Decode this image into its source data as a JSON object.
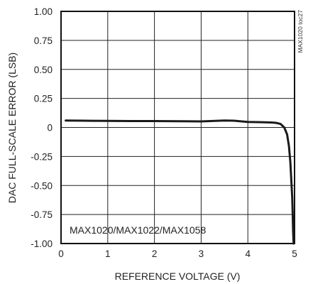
{
  "chart_data": {
    "type": "line",
    "title": "",
    "xlabel": "REFERENCE VOLTAGE (V)",
    "ylabel": "DAC FULL-SCALE ERROR (LSB)",
    "xlim": [
      0,
      5
    ],
    "ylim": [
      -1.0,
      1.0
    ],
    "x_ticks": [
      "0",
      "1",
      "2",
      "3",
      "4",
      "5"
    ],
    "y_ticks": [
      "1.00",
      "0.75",
      "0.50",
      "0.25",
      "0",
      "-0.25",
      "-0.50",
      "-0.75",
      "-1.00"
    ],
    "grid": true,
    "annotation": "MAX1020/MAX1022/MAX1058",
    "side_id": "MAX1020 toc27",
    "series": [
      {
        "color": "#1a1a1a",
        "x": [
          0.1,
          0.5,
          1.0,
          1.5,
          2.0,
          2.5,
          3.0,
          3.2,
          3.5,
          3.7,
          4.0,
          4.3,
          4.5,
          4.6,
          4.7,
          4.78,
          4.84,
          4.88,
          4.91,
          4.93,
          4.95,
          4.96,
          4.97,
          4.98
        ],
        "y": [
          0.06,
          0.058,
          0.056,
          0.055,
          0.055,
          0.054,
          0.052,
          0.055,
          0.06,
          0.058,
          0.048,
          0.045,
          0.043,
          0.04,
          0.03,
          0.0,
          -0.06,
          -0.16,
          -0.3,
          -0.45,
          -0.6,
          -0.75,
          -0.9,
          -1.0
        ]
      }
    ]
  }
}
